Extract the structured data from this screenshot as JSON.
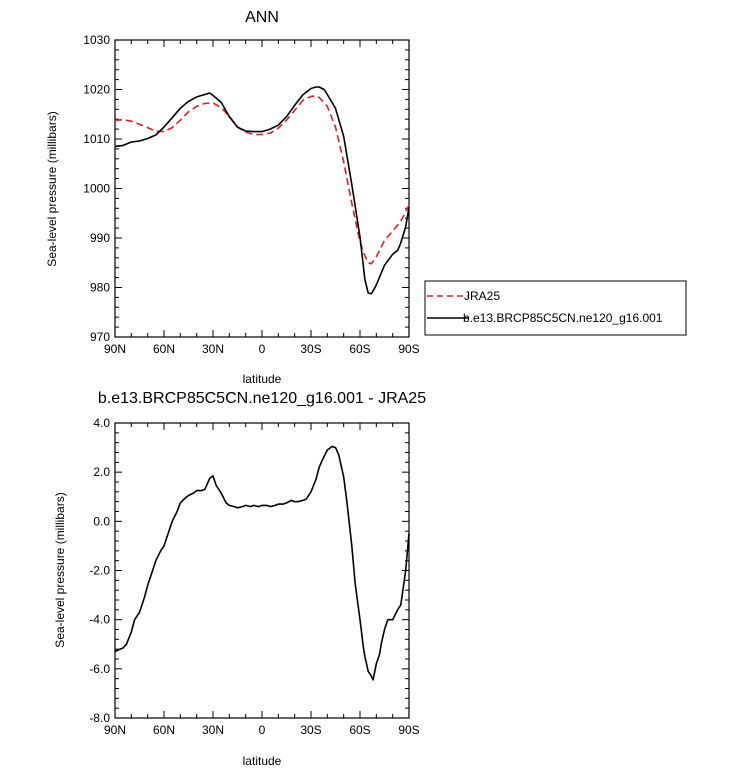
{
  "chart_data": [
    {
      "type": "line",
      "title": "ANN",
      "xlabel": "latitude",
      "ylabel": "Sea-level pressure (millibars)",
      "xlim": [
        -90,
        90
      ],
      "ylim": [
        970,
        1030
      ],
      "x_reversed": true,
      "xticks": [
        {
          "value": -90,
          "label": "90N"
        },
        {
          "value": -60,
          "label": "60N"
        },
        {
          "value": -30,
          "label": "30N"
        },
        {
          "value": 0,
          "label": "0"
        },
        {
          "value": 30,
          "label": "30S"
        },
        {
          "value": 60,
          "label": "60S"
        },
        {
          "value": 90,
          "label": "90S"
        }
      ],
      "yticks": [
        {
          "value": 970,
          "label": "970"
        },
        {
          "value": 980,
          "label": "980"
        },
        {
          "value": 990,
          "label": "990"
        },
        {
          "value": 1000,
          "label": "1000"
        },
        {
          "value": 1010,
          "label": "1010"
        },
        {
          "value": 1020,
          "label": "1020"
        },
        {
          "value": 1030,
          "label": "1030"
        }
      ],
      "legend_position": "right",
      "series": [
        {
          "name": "JRA25",
          "color": "#e02020",
          "dashed": true,
          "x": [
            -90,
            -85,
            -80,
            -75,
            -70,
            -65,
            -60,
            -55,
            -50,
            -45,
            -40,
            -35,
            -30,
            -25,
            -20,
            -15,
            -10,
            -5,
            0,
            5,
            10,
            15,
            20,
            25,
            30,
            33,
            35,
            40,
            45,
            50,
            55,
            60,
            63,
            65,
            67,
            70,
            75,
            80,
            85,
            90
          ],
          "y": [
            1013.8,
            1013.9,
            1013.6,
            1013.0,
            1012.3,
            1011.6,
            1011.5,
            1012.3,
            1013.8,
            1015.5,
            1016.6,
            1017.2,
            1017.3,
            1016.3,
            1014.6,
            1012.4,
            1011.4,
            1010.9,
            1010.9,
            1011.2,
            1012.2,
            1013.8,
            1015.8,
            1017.8,
            1018.6,
            1018.7,
            1018.4,
            1016.6,
            1012.4,
            1005.4,
            997.0,
            989.2,
            986.4,
            985.0,
            984.8,
            986.2,
            989.5,
            991.4,
            993.4,
            996.6
          ]
        },
        {
          "name": "b.e13.BRCP85C5CN.ne120_g16.001",
          "color": "#000000",
          "dashed": false,
          "x": [
            -90,
            -85,
            -80,
            -75,
            -70,
            -65,
            -60,
            -55,
            -50,
            -45,
            -40,
            -35,
            -32,
            -30,
            -25,
            -20,
            -15,
            -10,
            -5,
            0,
            5,
            10,
            15,
            20,
            25,
            30,
            33,
            35,
            38,
            40,
            45,
            50,
            55,
            60,
            63,
            65,
            67,
            70,
            75,
            80,
            83,
            85,
            88,
            90
          ],
          "y": [
            1008.5,
            1008.7,
            1009.4,
            1009.6,
            1010.1,
            1010.8,
            1012.4,
            1014.3,
            1016.2,
            1017.6,
            1018.5,
            1019.0,
            1019.3,
            1018.8,
            1017.4,
            1014.5,
            1012.4,
            1011.6,
            1011.5,
            1011.5,
            1012.0,
            1012.8,
            1014.5,
            1016.8,
            1018.9,
            1020.2,
            1020.5,
            1020.5,
            1020.0,
            1019.0,
            1016.2,
            1010.5,
            1000.8,
            990.2,
            981.6,
            978.9,
            978.7,
            980.5,
            984.5,
            986.7,
            987.5,
            989.0,
            992.3,
            996.2
          ]
        }
      ]
    },
    {
      "type": "line",
      "title": "b.e13.BRCP85C5CN.ne120_g16.001 - JRA25",
      "xlabel": "latitude",
      "ylabel": "Sea-level pressure (millibars)",
      "xlim": [
        -90,
        90
      ],
      "ylim": [
        -8,
        4
      ],
      "x_reversed": true,
      "xticks": [
        {
          "value": -90,
          "label": "90N"
        },
        {
          "value": -60,
          "label": "60N"
        },
        {
          "value": -30,
          "label": "30N"
        },
        {
          "value": 0,
          "label": "0"
        },
        {
          "value": 30,
          "label": "30S"
        },
        {
          "value": 60,
          "label": "60S"
        },
        {
          "value": 90,
          "label": "90S"
        }
      ],
      "yticks": [
        {
          "value": -8,
          "label": "-8.0"
        },
        {
          "value": -6,
          "label": "-6.0"
        },
        {
          "value": -4,
          "label": "-4.0"
        },
        {
          "value": -2,
          "label": "-2.0"
        },
        {
          "value": 0,
          "label": "0.0"
        },
        {
          "value": 2,
          "label": "2.0"
        },
        {
          "value": 4,
          "label": "4.0"
        }
      ],
      "series": [
        {
          "color": "#000000",
          "dashed": false,
          "x": [
            -90,
            -87,
            -85,
            -83,
            -80,
            -78,
            -75,
            -72,
            -70,
            -67,
            -65,
            -62,
            -60,
            -57,
            -55,
            -52,
            -50,
            -47,
            -45,
            -42,
            -40,
            -37,
            -35,
            -33,
            -32,
            -30,
            -28,
            -25,
            -22,
            -20,
            -17,
            -15,
            -12,
            -10,
            -7,
            -5,
            -2,
            0,
            3,
            5,
            8,
            10,
            13,
            15,
            18,
            20,
            22,
            25,
            27,
            30,
            33,
            35,
            37,
            40,
            42,
            43,
            45,
            47,
            50,
            52,
            55,
            57,
            60,
            62,
            63,
            65,
            67,
            68,
            70,
            72,
            73,
            75,
            77,
            80,
            83,
            85,
            88,
            90
          ],
          "y": [
            -5.3,
            -5.2,
            -5.15,
            -5.0,
            -4.5,
            -4.0,
            -3.7,
            -3.1,
            -2.6,
            -2.0,
            -1.6,
            -1.2,
            -1.0,
            -0.4,
            0.0,
            0.4,
            0.75,
            0.95,
            1.05,
            1.15,
            1.25,
            1.25,
            1.3,
            1.6,
            1.75,
            1.85,
            1.45,
            1.15,
            0.75,
            0.65,
            0.6,
            0.55,
            0.6,
            0.65,
            0.6,
            0.65,
            0.6,
            0.65,
            0.65,
            0.6,
            0.65,
            0.7,
            0.7,
            0.75,
            0.85,
            0.8,
            0.8,
            0.85,
            0.9,
            1.2,
            1.7,
            2.2,
            2.5,
            2.9,
            3.0,
            3.05,
            3.0,
            2.7,
            1.8,
            0.8,
            -1.0,
            -2.5,
            -4.0,
            -5.1,
            -5.5,
            -6.1,
            -6.3,
            -6.45,
            -5.8,
            -5.4,
            -5.0,
            -4.4,
            -4.0,
            -4.0,
            -3.6,
            -3.4,
            -2.0,
            -0.5
          ]
        }
      ]
    }
  ],
  "legend": {
    "items": [
      {
        "label": "JRA25"
      },
      {
        "label": "b.e13.BRCP85C5CN.ne120_g16.001"
      }
    ]
  }
}
